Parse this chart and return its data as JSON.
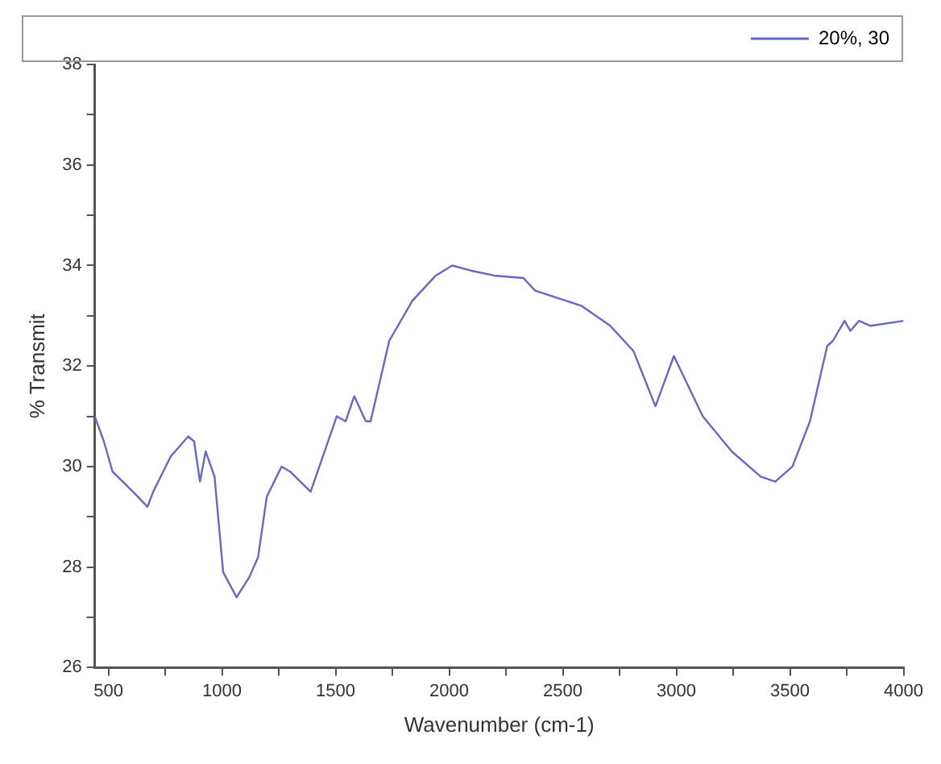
{
  "chart_data": {
    "type": "line",
    "xlabel": "Wavenumber (cm-1)",
    "ylabel": "% Transmit",
    "x": [
      440,
      480,
      518,
      608,
      672,
      697,
      774,
      851,
      877,
      903,
      928,
      967,
      1005,
      1064,
      1120,
      1159,
      1197,
      1262,
      1300,
      1390,
      1505,
      1544,
      1582,
      1633,
      1654,
      1736,
      1838,
      1941,
      2013,
      2095,
      2197,
      2327,
      2378,
      2581,
      2709,
      2811,
      2908,
      2989,
      3116,
      3244,
      3371,
      3435,
      3511,
      3588,
      3664,
      3689,
      3740,
      3766,
      3804,
      3855,
      4000
    ],
    "series": [
      {
        "name": "20%, 30",
        "color": "#6666cc",
        "values": [
          31.0,
          30.5,
          29.9,
          29.5,
          29.2,
          29.5,
          30.2,
          30.6,
          30.5,
          29.7,
          30.3,
          29.8,
          27.9,
          27.4,
          27.8,
          28.2,
          29.4,
          30.0,
          29.9,
          29.5,
          31.0,
          30.9,
          31.4,
          30.9,
          30.9,
          32.5,
          33.3,
          33.8,
          34.0,
          33.9,
          33.8,
          33.75,
          33.5,
          33.2,
          32.8,
          32.3,
          31.2,
          32.2,
          31.0,
          30.3,
          29.8,
          29.7,
          30.0,
          30.9,
          32.4,
          32.5,
          32.9,
          32.7,
          32.9,
          32.8,
          32.9
        ]
      }
    ],
    "xlim": [
      440,
      4000
    ],
    "xticks": [
      500,
      {
        "value": 750,
        "label": null
      },
      1000,
      {
        "value": 1250,
        "label": null
      },
      1500,
      {
        "value": 1750,
        "label": null
      },
      2000,
      {
        "value": 2250,
        "label": null
      },
      2500,
      {
        "value": 2750,
        "label": null
      },
      3000,
      {
        "value": 3250,
        "label": null
      },
      3500,
      {
        "value": 3750,
        "label": null
      },
      4000
    ],
    "ylim": [
      26,
      38
    ],
    "yticks": [
      26,
      {
        "value": 27,
        "label": null
      },
      28,
      {
        "value": 29,
        "label": null
      },
      30,
      {
        "value": 31,
        "label": null
      },
      32,
      {
        "value": 33,
        "label": null
      },
      34,
      {
        "value": 35,
        "label": null
      },
      36,
      {
        "value": 37,
        "label": null
      },
      38
    ],
    "grid": false,
    "legend": "top right",
    "marker": "none",
    "line_style": "solid"
  }
}
